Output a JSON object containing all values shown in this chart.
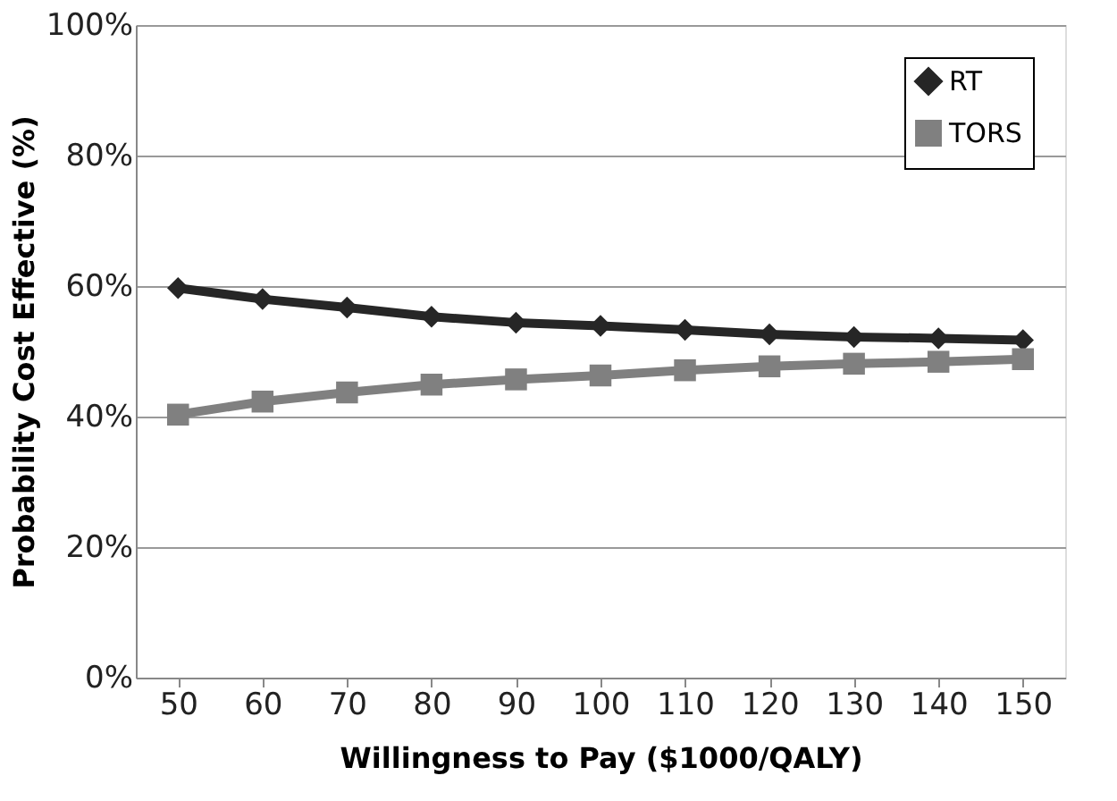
{
  "chart_data": {
    "type": "line",
    "xlabel": "Willingness to Pay ($1000/QALY)",
    "ylabel": "Probability Cost Effective  (%)",
    "categories": [
      "50",
      "60",
      "70",
      "80",
      "90",
      "100",
      "110",
      "120",
      "130",
      "140",
      "150"
    ],
    "series": [
      {
        "name": "RT",
        "color": "#262626",
        "marker": "diamond",
        "values": [
          59.7,
          58.0,
          56.7,
          55.3,
          54.4,
          53.9,
          53.3,
          52.6,
          52.2,
          52.0,
          51.7
        ]
      },
      {
        "name": "TORS",
        "color": "#808080",
        "marker": "square",
        "values": [
          40.3,
          42.3,
          43.7,
          44.9,
          45.7,
          46.3,
          47.1,
          47.7,
          48.1,
          48.4,
          48.8
        ]
      }
    ],
    "ylim": [
      0,
      100
    ],
    "yticks": [
      {
        "value": 0,
        "label": "0%"
      },
      {
        "value": 20,
        "label": "20%"
      },
      {
        "value": 40,
        "label": "40%"
      },
      {
        "value": 60,
        "label": "60%"
      },
      {
        "value": 80,
        "label": "80%"
      },
      {
        "value": 100,
        "label": "100%"
      }
    ],
    "grid": "y",
    "legend": "top right",
    "line_style": "solid"
  }
}
